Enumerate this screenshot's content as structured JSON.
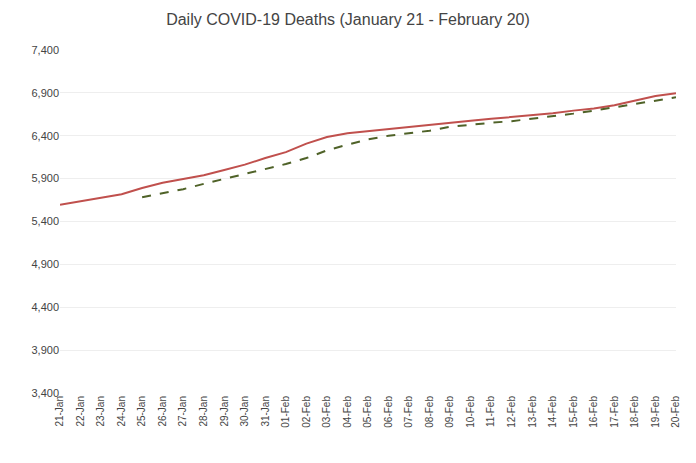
{
  "chart_data": {
    "type": "line",
    "title": "Daily COVID-19 Deaths (January 21 - February 20)",
    "categories": [
      "21-Jan",
      "22-Jan",
      "23-Jan",
      "24-Jan",
      "25-Jan",
      "26-Jan",
      "27-Jan",
      "28-Jan",
      "29-Jan",
      "30-Jan",
      "31-Jan",
      "01-Feb",
      "02-Feb",
      "03-Feb",
      "04-Feb",
      "05-Feb",
      "06-Feb",
      "07-Feb",
      "08-Feb",
      "09-Feb",
      "10-Feb",
      "11-Feb",
      "12-Feb",
      "13-Feb",
      "14-Feb",
      "15-Feb",
      "16-Feb",
      "17-Feb",
      "18-Feb",
      "19-Feb",
      "20-Feb"
    ],
    "series": [
      {
        "color": "#c0504d",
        "line_style": "solid",
        "values": [
          5596,
          5638,
          5679,
          5717,
          5790,
          5851,
          5896,
          5940,
          6000,
          6063,
          6140,
          6209,
          6308,
          6386,
          6430,
          6455,
          6475,
          6508,
          6528,
          6553,
          6575,
          6597,
          6617,
          6643,
          6662,
          6693,
          6718,
          6756,
          6808,
          6863,
          6895
        ]
      },
      {
        "color": "#4f6228",
        "line_style": "dashed",
        "values": [
          null,
          null,
          null,
          null,
          5684,
          5727,
          5777,
          5839,
          5895,
          5950,
          6006,
          6070,
          6140,
          6229,
          6296,
          6357,
          6400,
          6427,
          6459,
          6504,
          6530,
          6552,
          6570,
          6599,
          6625,
          6658,
          6693,
          6730,
          6771,
          6808,
          6848
        ]
      }
    ],
    "ylim": [
      3400,
      7400
    ],
    "yticks": [
      {
        "value": 3400,
        "label": "3,400"
      },
      {
        "value": 3900,
        "label": "3,900"
      },
      {
        "value": 4400,
        "label": "4,400"
      },
      {
        "value": 4900,
        "label": "4,900"
      },
      {
        "value": 5400,
        "label": "5,400"
      },
      {
        "value": 5900,
        "label": "5,900"
      },
      {
        "value": 6400,
        "label": "6,400"
      },
      {
        "value": 6900,
        "label": "6,900"
      },
      {
        "value": 7400,
        "label": "7,400"
      }
    ],
    "grid": true
  }
}
